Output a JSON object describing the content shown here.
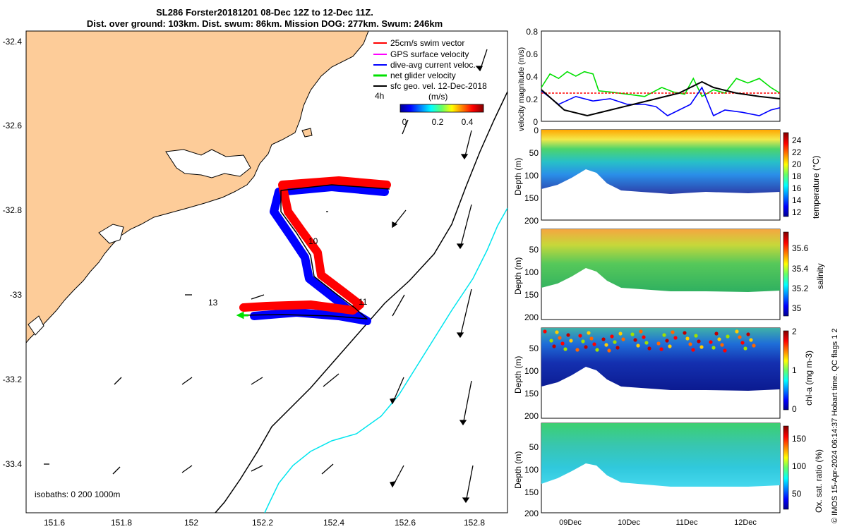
{
  "header": {
    "title_line1": "SL286 Forster20181201 08-Dec 12Z to 12-Dec 11Z.",
    "title_line2": "Dist. over ground: 103km. Dist. swum: 86km. Mission DOG: 277km. Swum: 246km"
  },
  "map": {
    "legend": [
      {
        "label": "25cm/s swim vector",
        "color": "#ff0000"
      },
      {
        "label": "GPS surface velocity",
        "color": "#ff00ff"
      },
      {
        "label": "dive-avg current veloc.",
        "color": "#0000ff"
      },
      {
        "label": "net glider velocity",
        "color": "#00e000"
      },
      {
        "label": "sfc geo. vel. 12-Dec-2018",
        "color": "#000000"
      }
    ],
    "time_label": "4h",
    "colorbar_unit": "(m/s)",
    "colorbar_ticks": [
      "0",
      "0.2",
      "0.4"
    ],
    "isobath_label": "isobaths: 0   200  1000m",
    "waypoints": [
      "10",
      "11",
      "13"
    ],
    "land_color": "#fdcc99",
    "shelf_isobath_color": "#000000",
    "deep_isobath_color": "#00e5ee"
  },
  "chart_data": [
    {
      "type": "map",
      "x_ticks": [
        "151.6",
        "151.8",
        "152",
        "152.2",
        "152.4",
        "152.6",
        "152.8"
      ],
      "y_ticks": [
        "-32.4",
        "-32.6",
        "-32.8",
        "-33",
        "-33.2",
        "-33.4"
      ],
      "xlim": [
        151.53,
        152.89
      ],
      "ylim": [
        -33.52,
        -32.35
      ],
      "glider_track": [
        [
          152.56,
          -32.77
        ],
        [
          152.45,
          -32.76
        ],
        [
          152.36,
          -32.77
        ],
        [
          152.24,
          -32.79
        ],
        [
          152.25,
          -32.84
        ],
        [
          152.31,
          -32.89
        ],
        [
          152.32,
          -32.95
        ],
        [
          152.38,
          -32.99
        ],
        [
          152.46,
          -33.0
        ],
        [
          152.52,
          -33.05
        ],
        [
          152.44,
          -33.05
        ],
        [
          152.3,
          -33.04
        ],
        [
          152.16,
          -33.04
        ]
      ]
    },
    {
      "type": "line",
      "ylabel": "velocity magnitude (m/s)",
      "ylim": [
        0,
        0.8
      ],
      "y_ticks": [
        "0",
        "0.2",
        "0.4",
        "0.6",
        "0.8"
      ],
      "xlim": [
        0,
        4.16
      ],
      "series": [
        {
          "color": "#00e000",
          "x": [
            0,
            0.15,
            0.3,
            0.45,
            0.6,
            0.75,
            0.9,
            1.0,
            1.2,
            1.5,
            1.8,
            2.1,
            2.3,
            2.5,
            2.65,
            2.8,
            3.0,
            3.2,
            3.4,
            3.6,
            3.8,
            4.0,
            4.16
          ],
          "values": [
            0.3,
            0.42,
            0.38,
            0.44,
            0.4,
            0.44,
            0.42,
            0.27,
            0.26,
            0.24,
            0.22,
            0.3,
            0.26,
            0.24,
            0.38,
            0.22,
            0.28,
            0.25,
            0.38,
            0.34,
            0.38,
            0.3,
            0.25
          ]
        },
        {
          "color": "#ff0000",
          "x": [
            0,
            0.5,
            1.0,
            1.5,
            2.0,
            2.5,
            3.0,
            3.5,
            4.16
          ],
          "values": [
            0.25,
            0.25,
            0.25,
            0.25,
            0.25,
            0.25,
            0.25,
            0.25,
            0.25
          ]
        },
        {
          "color": "#0000ff",
          "x": [
            0,
            0.3,
            0.6,
            0.9,
            1.2,
            1.5,
            1.8,
            2.0,
            2.2,
            2.4,
            2.6,
            2.8,
            3.0,
            3.2,
            3.5,
            3.8,
            4.0,
            4.16
          ],
          "values": [
            0.27,
            0.15,
            0.22,
            0.18,
            0.2,
            0.15,
            0.15,
            0.13,
            0.05,
            0.1,
            0.15,
            0.3,
            0.05,
            0.1,
            0.08,
            0.05,
            0.1,
            0.12
          ]
        },
        {
          "color": "#000000",
          "x": [
            0,
            0.4,
            0.8,
            1.2,
            1.6,
            2.0,
            2.4,
            2.8,
            3.0,
            3.4,
            3.8,
            4.16
          ],
          "values": [
            0.28,
            0.1,
            0.05,
            0.1,
            0.15,
            0.2,
            0.25,
            0.35,
            0.3,
            0.25,
            0.22,
            0.2
          ]
        }
      ]
    },
    {
      "type": "heatmap",
      "ylabel": "Depth (m)",
      "y_ticks": [
        "0",
        "50",
        "100",
        "150",
        "200"
      ],
      "ylim": [
        200,
        0
      ],
      "cbar_label": "temperature (°C)",
      "cbar_ticks": [
        "24",
        "22",
        "20",
        "18",
        "16",
        "14",
        "12"
      ]
    },
    {
      "type": "heatmap",
      "ylabel": "Depth (m)",
      "y_ticks": [
        "50",
        "100",
        "150",
        "200"
      ],
      "ylim": [
        200,
        0
      ],
      "cbar_label": "salinity",
      "cbar_ticks": [
        "35.6",
        "35.4",
        "35.2",
        "35"
      ]
    },
    {
      "type": "heatmap",
      "ylabel": "Depth (m)",
      "y_ticks": [
        "50",
        "100",
        "150",
        "200"
      ],
      "ylim": [
        200,
        0
      ],
      "cbar_label": "chl-a (mg m-3)",
      "cbar_ticks": [
        "2",
        "1",
        "0"
      ]
    },
    {
      "type": "heatmap",
      "ylabel": "Depth (m)",
      "y_ticks": [
        "50",
        "100",
        "150",
        "200"
      ],
      "ylim": [
        200,
        0
      ],
      "cbar_label": "Ox. sat. ratio (%)",
      "cbar_ticks": [
        "150",
        "100",
        "50"
      ],
      "x_ticks": [
        "09Dec",
        "10Dec",
        "11Dec",
        "12Dec"
      ]
    }
  ],
  "side_note": "© IMOS 15-Apr-2024 06:14:37 Hobart time. QC flags 1  2"
}
